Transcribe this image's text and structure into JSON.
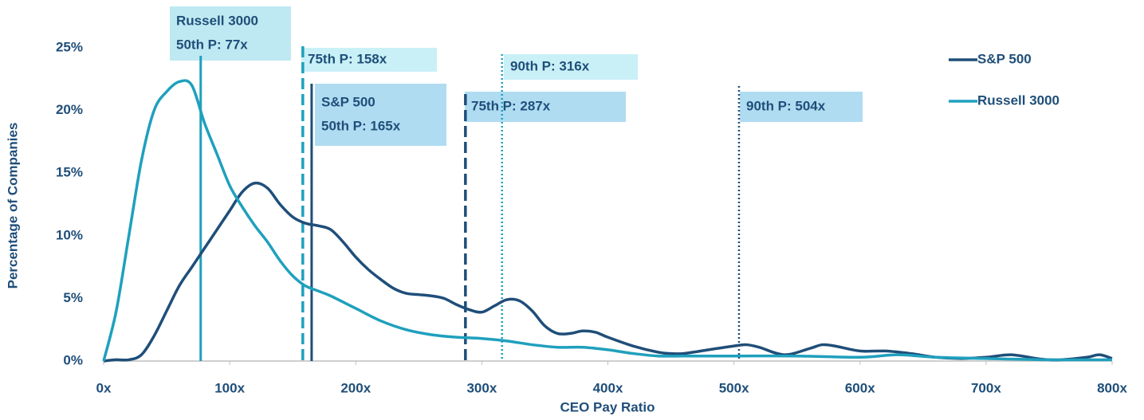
{
  "chart_data": {
    "type": "line",
    "x_label": "CEO Pay Ratio",
    "y_label": "Percentage of Companies",
    "xlim": [
      0,
      800
    ],
    "ylim": [
      0,
      25
    ],
    "xticks": [
      {
        "value": 0,
        "label": "0x"
      },
      {
        "value": 100,
        "label": "100x"
      },
      {
        "value": 200,
        "label": "200x"
      },
      {
        "value": 300,
        "label": "300x"
      },
      {
        "value": 400,
        "label": "400x"
      },
      {
        "value": 500,
        "label": "500x"
      },
      {
        "value": 600,
        "label": "600x"
      },
      {
        "value": 700,
        "label": "700x"
      },
      {
        "value": 800,
        "label": "800x"
      }
    ],
    "yticks": [
      {
        "value": 0,
        "label": "0%"
      },
      {
        "value": 5,
        "label": "5%"
      },
      {
        "value": 10,
        "label": "10%"
      },
      {
        "value": 15,
        "label": "15%"
      },
      {
        "value": 20,
        "label": "20%"
      },
      {
        "value": 25,
        "label": "25%"
      }
    ],
    "grid": false,
    "legend": "top-right",
    "series": [
      {
        "name": "S&P 500",
        "color": "#1f4e79",
        "x": [
          0,
          10,
          20,
          30,
          40,
          50,
          60,
          70,
          80,
          90,
          100,
          110,
          120,
          130,
          140,
          150,
          160,
          170,
          180,
          190,
          200,
          210,
          220,
          230,
          240,
          250,
          260,
          270,
          280,
          290,
          300,
          310,
          320,
          330,
          340,
          350,
          360,
          370,
          380,
          390,
          400,
          420,
          440,
          450,
          460,
          480,
          500,
          510,
          520,
          540,
          560,
          570,
          580,
          600,
          620,
          640,
          660,
          680,
          700,
          720,
          740,
          750,
          760,
          780,
          790,
          800
        ],
        "values": [
          0,
          0.1,
          0.1,
          0.5,
          2,
          4,
          6,
          7.5,
          9,
          10.5,
          12,
          13.5,
          14.2,
          13.8,
          12.5,
          11.5,
          11,
          10.8,
          10.5,
          9.5,
          8.3,
          7.3,
          6.5,
          5.8,
          5.4,
          5.3,
          5.2,
          5,
          4.5,
          4.1,
          3.9,
          4.4,
          4.9,
          4.8,
          4,
          2.8,
          2.2,
          2.2,
          2.4,
          2.3,
          1.9,
          1.2,
          0.7,
          0.6,
          0.6,
          0.9,
          1.2,
          1.3,
          1.1,
          0.5,
          1,
          1.3,
          1.2,
          0.8,
          0.8,
          0.6,
          0.3,
          0.2,
          0.3,
          0.5,
          0.2,
          0.1,
          0.1,
          0.3,
          0.5,
          0.2
        ]
      },
      {
        "name": "Russell 3000",
        "color": "#1fa0bd",
        "x": [
          0,
          10,
          20,
          30,
          40,
          50,
          60,
          70,
          80,
          90,
          100,
          110,
          120,
          130,
          140,
          150,
          160,
          170,
          180,
          200,
          220,
          240,
          260,
          280,
          300,
          320,
          340,
          360,
          380,
          400,
          420,
          440,
          460,
          500,
          550,
          600,
          630,
          660,
          700,
          750,
          800
        ],
        "values": [
          0,
          4,
          10,
          16,
          20,
          21.5,
          22.3,
          22,
          19,
          16.5,
          14,
          12.3,
          10.8,
          9.5,
          8,
          6.8,
          6,
          5.6,
          5.2,
          4.2,
          3.2,
          2.5,
          2.1,
          1.9,
          1.8,
          1.6,
          1.3,
          1.1,
          1.1,
          0.9,
          0.6,
          0.4,
          0.4,
          0.4,
          0.4,
          0.3,
          0.5,
          0.3,
          0.2,
          0.1,
          0.1
        ]
      }
    ],
    "reference_lines": [
      {
        "x": 77,
        "label": [
          "Russell 3000",
          "50th P: 77x"
        ],
        "style": "solid",
        "color": "#1fa0bd"
      },
      {
        "x": 158,
        "label": [
          "75th P: 158x"
        ],
        "style": "dashed",
        "color": "#1fa0bd"
      },
      {
        "x": 165,
        "label": [
          "S&P 500",
          "50th P: 165x"
        ],
        "style": "solid",
        "color": "#1f4e79"
      },
      {
        "x": 287,
        "label": [
          "75th P: 287x"
        ],
        "style": "dashed",
        "color": "#1f4e79"
      },
      {
        "x": 316,
        "label": [
          "90th P: 316x"
        ],
        "style": "dotted",
        "color": "#1fa0bd"
      },
      {
        "x": 504,
        "label": [
          "90th P: 504x"
        ],
        "style": "dotted",
        "color": "#1f4e79"
      }
    ]
  }
}
